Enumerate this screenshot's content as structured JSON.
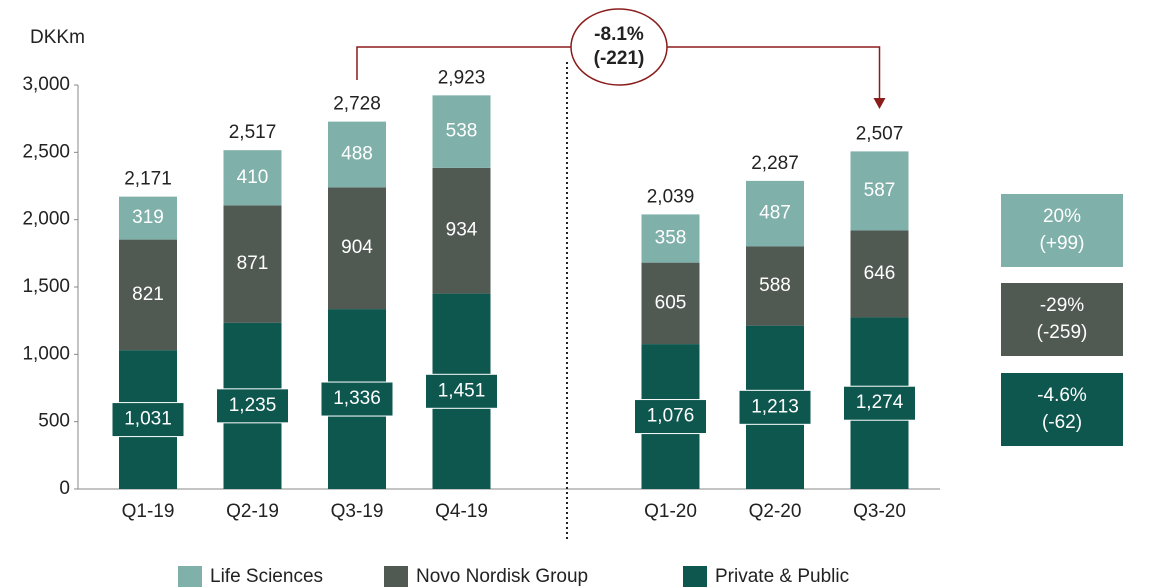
{
  "chart_data": {
    "type": "bar",
    "stacked": true,
    "y_label": "DKKm",
    "categories": [
      "Q1-19",
      "Q2-19",
      "Q3-19",
      "Q4-19",
      "Q1-20",
      "Q2-20",
      "Q3-20"
    ],
    "series": [
      {
        "name": "Life Sciences",
        "color": "#7fb0aa",
        "values": [
          319,
          410,
          488,
          538,
          358,
          487,
          587
        ]
      },
      {
        "name": "Novo Nordisk Group",
        "color": "#515953",
        "values": [
          821,
          871,
          904,
          934,
          605,
          588,
          646
        ]
      },
      {
        "name": "Private & Public",
        "color": "#0e574f",
        "values": [
          1031,
          1235,
          1336,
          1451,
          1076,
          1213,
          1274
        ],
        "value_labels": [
          "1,031",
          "1,235",
          "1,336",
          "1,451",
          "1,076",
          "1,213",
          "1,274"
        ]
      }
    ],
    "totals": {
      "values": [
        2171,
        2517,
        2728,
        2923,
        2039,
        2287,
        2507
      ],
      "value_labels": [
        "2,171",
        "2,517",
        "2,728",
        "2,923",
        "2,039",
        "2,287",
        "2,507"
      ]
    },
    "ylim": [
      0,
      3000
    ],
    "yticks": [
      0,
      500,
      {
        "value": 1000,
        "label": "1,000"
      },
      {
        "value": 1500,
        "label": "1,500"
      },
      {
        "value": 2000,
        "label": "2,000"
      },
      {
        "value": 2500,
        "label": "2,500"
      },
      {
        "value": 3000,
        "label": "3,000"
      }
    ],
    "change_annotation": {
      "lines": [
        "-8.1%",
        "(-221)"
      ]
    },
    "series_changes": [
      {
        "lines": [
          "20%",
          "(+99)"
        ]
      },
      {
        "lines": [
          "-29%",
          "(-259)"
        ]
      },
      {
        "lines": [
          "-4.6%",
          "(-62)"
        ]
      }
    ],
    "legend": "bottom"
  }
}
